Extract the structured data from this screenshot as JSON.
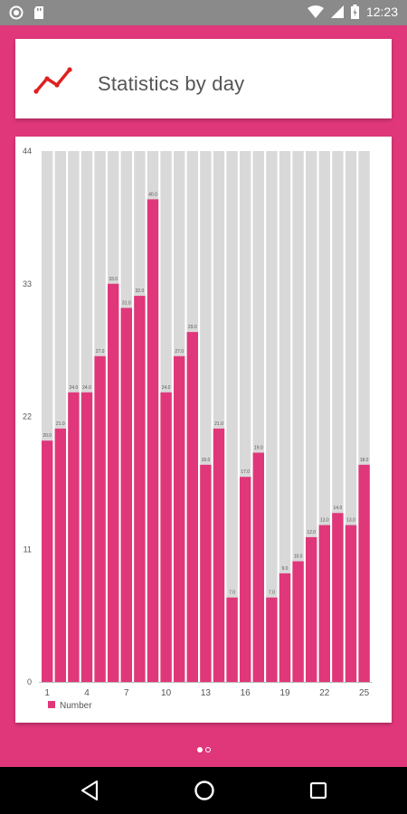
{
  "status_bar": {
    "time": "12:23",
    "icons": [
      "record-icon",
      "sd-card-icon",
      "wifi-icon",
      "signal-icon",
      "battery-charging-icon"
    ]
  },
  "title_card": {
    "icon": "trend-line-icon",
    "title": "Statistics by day",
    "icon_color": "#e02020"
  },
  "colors": {
    "accent": "#e0377a",
    "bar_background": "#d9d9d9"
  },
  "chart_data": {
    "type": "bar",
    "categories": [
      "1",
      "2",
      "3",
      "4",
      "5",
      "6",
      "7",
      "8",
      "9",
      "10",
      "11",
      "12",
      "13",
      "14",
      "15",
      "16",
      "17",
      "18",
      "19",
      "20",
      "21",
      "22",
      "23",
      "24",
      "25"
    ],
    "x_tick_labels": [
      "1",
      "4",
      "7",
      "10",
      "13",
      "16",
      "19",
      "22",
      "25"
    ],
    "series": [
      {
        "name": "Number",
        "values": [
          20,
          21,
          24,
          24,
          27,
          33,
          31,
          32,
          40,
          24,
          27,
          29,
          18,
          21,
          7,
          17,
          19,
          7,
          9,
          10,
          12,
          13,
          14,
          13,
          18
        ],
        "data_labels": [
          "20.0",
          "21.0",
          "24.0",
          "24.0",
          "27.0",
          "33.0",
          "31.0",
          "32.0",
          "40.0",
          "24.0",
          "27.0",
          "29.0",
          "18.0",
          "21.0",
          "7.0",
          "17.0",
          "19.0",
          "7.0",
          "9.0",
          "10.0",
          "12.0",
          "13.0",
          "14.0",
          "13.0",
          "18.0"
        ]
      }
    ],
    "ylim": [
      0,
      44
    ],
    "y_ticks": [
      "0",
      "11",
      "22",
      "33",
      "44"
    ],
    "legend": "bottom-left",
    "grid": false
  },
  "pager": {
    "pages": 2,
    "active": 0
  },
  "nav_bar": {
    "buttons": [
      "back-icon",
      "home-icon",
      "recents-icon"
    ]
  }
}
